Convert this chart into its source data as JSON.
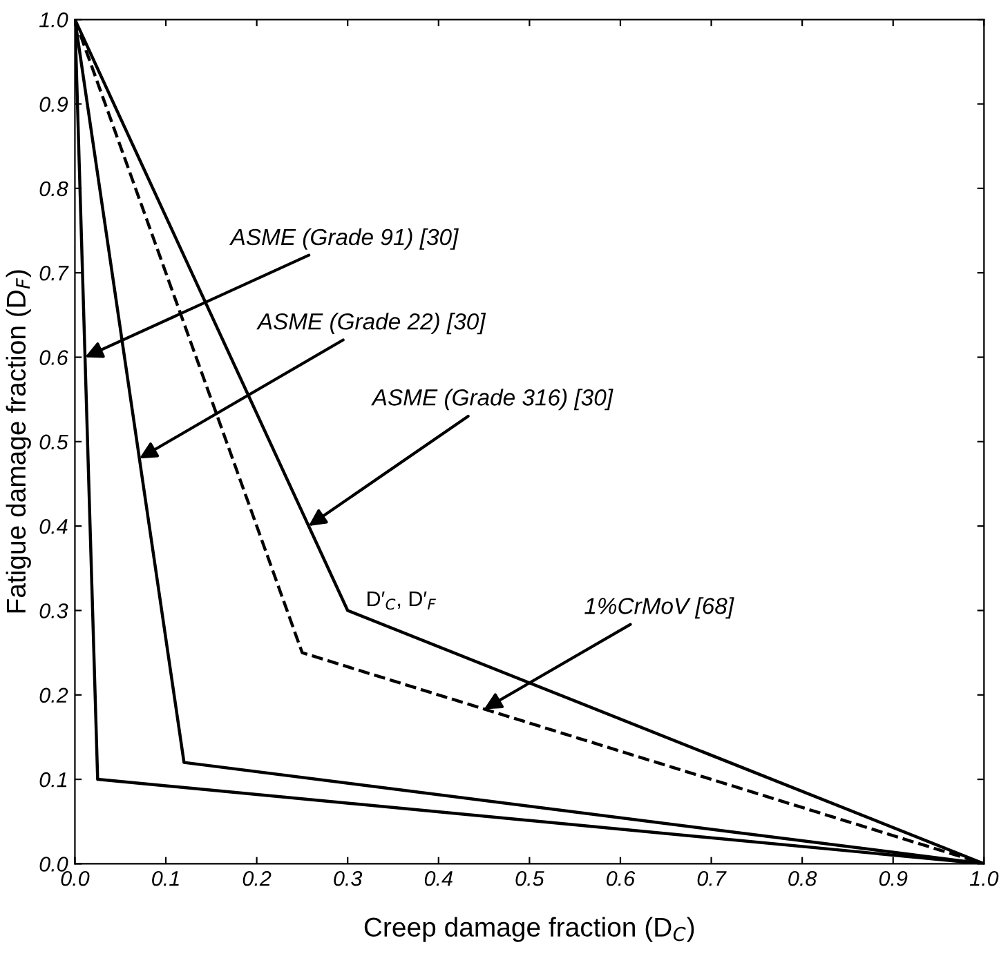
{
  "chart_data": {
    "type": "line",
    "xlabel": "Creep damage fraction (D$_{C}$)",
    "ylabel": "Fatigue damage fraction (D$_{F}$)",
    "series": [
      {
        "x": [
          0,
          0.025,
          1
        ],
        "values": [
          1,
          0.1,
          0
        ],
        "color": "#000000",
        "line_style": "solid"
      },
      {
        "x": [
          0,
          0.12,
          1
        ],
        "values": [
          1,
          0.12,
          0
        ],
        "color": "#000000",
        "line_style": "solid"
      },
      {
        "x": [
          0,
          0.3,
          1
        ],
        "values": [
          1,
          0.3,
          0
        ],
        "color": "#000000",
        "line_style": "solid"
      },
      {
        "x": [
          0,
          0.25,
          1
        ],
        "values": [
          1,
          0.25,
          0
        ],
        "color": "#000000",
        "line_style": "dashed"
      }
    ],
    "annotations": [
      {
        "text": "ASME (Grade 91) [30]",
        "x": 0.0111,
        "y": 0.6
      },
      {
        "text": "ASME (Grade 22) [30]",
        "x": 0.0709,
        "y": 0.48
      },
      {
        "text": "ASME (Grade 316) [30]",
        "x": 0.257,
        "y": 0.4
      },
      {
        "text": "1%CrMoV [68]",
        "x": 0.45,
        "y": 0.183
      },
      {
        "text": "D′$_{C}$, D′$_{F}$",
        "x": 0.3,
        "y": 0.3
      }
    ],
    "xlim": [
      0,
      1
    ],
    "ylim": [
      0,
      1
    ],
    "xticks": [
      {
        "value": 0,
        "label": "0.0"
      },
      0.1,
      0.2,
      0.3,
      0.4,
      0.5,
      0.6,
      0.7,
      0.8,
      0.9,
      {
        "value": 1,
        "label": "1.0"
      }
    ],
    "yticks": [
      {
        "value": 0,
        "label": "0.0"
      },
      0.1,
      0.2,
      0.3,
      0.4,
      0.5,
      0.6,
      0.7,
      0.8,
      0.9,
      {
        "value": 1,
        "label": "1.0"
      }
    ],
    "grid": false,
    "legend": false,
    "marker": "none"
  }
}
